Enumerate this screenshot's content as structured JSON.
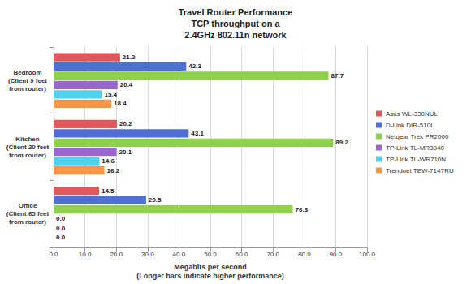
{
  "chart_data": {
    "type": "bar",
    "orientation": "horizontal",
    "title": "Travel Router Performance\nTCP throughput on a\n2.4GHz 802.11n network",
    "x_label": "Megabits per second\n(Longer bars indicate higher performance)",
    "categories": [
      "Bedroom\n(Client 9 feet\nfrom router)",
      "Kitchen\n(Client 20 feet\nfrom router)",
      "Office\n(Client 65 feet\nfrom router)"
    ],
    "series": [
      {
        "name": "Asus WL-330NUL",
        "color": "#e0585a",
        "values": [
          21.2,
          20.2,
          14.5
        ],
        "value_labels": [
          "21.2",
          "20.2",
          "14.5"
        ]
      },
      {
        "name": "D-Link DIR-510L",
        "color": "#4f6fd6",
        "values": [
          42.3,
          43.1,
          29.5
        ],
        "value_labels": [
          "42.3",
          "43.1",
          "29.5"
        ]
      },
      {
        "name": "Netgear Trek PR2000",
        "color": "#8fd14f",
        "values": [
          87.7,
          89.2,
          76.3
        ],
        "value_labels": [
          "87.7",
          "89.2",
          "76.3"
        ]
      },
      {
        "name": "TP-Link TL-MR3040",
        "color": "#9966cc",
        "values": [
          20.4,
          20.1,
          0
        ],
        "value_labels": [
          "20.4",
          "20.1",
          "0.0"
        ]
      },
      {
        "name": "TP-Link TL-WR710N",
        "color": "#4dd2f0",
        "values": [
          15.4,
          14.6,
          0
        ],
        "value_labels": [
          "15.4",
          "14.6",
          "0.0"
        ]
      },
      {
        "name": "Trendnet TEW-714TRU",
        "color": "#f79646",
        "values": [
          18.4,
          16.2,
          0
        ],
        "value_labels": [
          "18.4",
          "16.2",
          "0.0"
        ]
      }
    ],
    "xlim": [
      0,
      100
    ],
    "xticks": [
      {
        "value": 0,
        "label": "0.0"
      },
      {
        "value": 10,
        "label": "10.0"
      },
      {
        "value": 20,
        "label": "20.0"
      },
      {
        "value": 30,
        "label": "30.0"
      },
      {
        "value": 40,
        "label": "40.0"
      },
      {
        "value": 50,
        "label": "50.0"
      },
      {
        "value": 60,
        "label": "60.0"
      },
      {
        "value": 70,
        "label": "70.0"
      },
      {
        "value": 80,
        "label": "80.0"
      },
      {
        "value": 90,
        "label": "90.0"
      },
      {
        "value": 100,
        "label": "100.0"
      }
    ],
    "grid": true,
    "legend": "right",
    "data_labels": true
  }
}
